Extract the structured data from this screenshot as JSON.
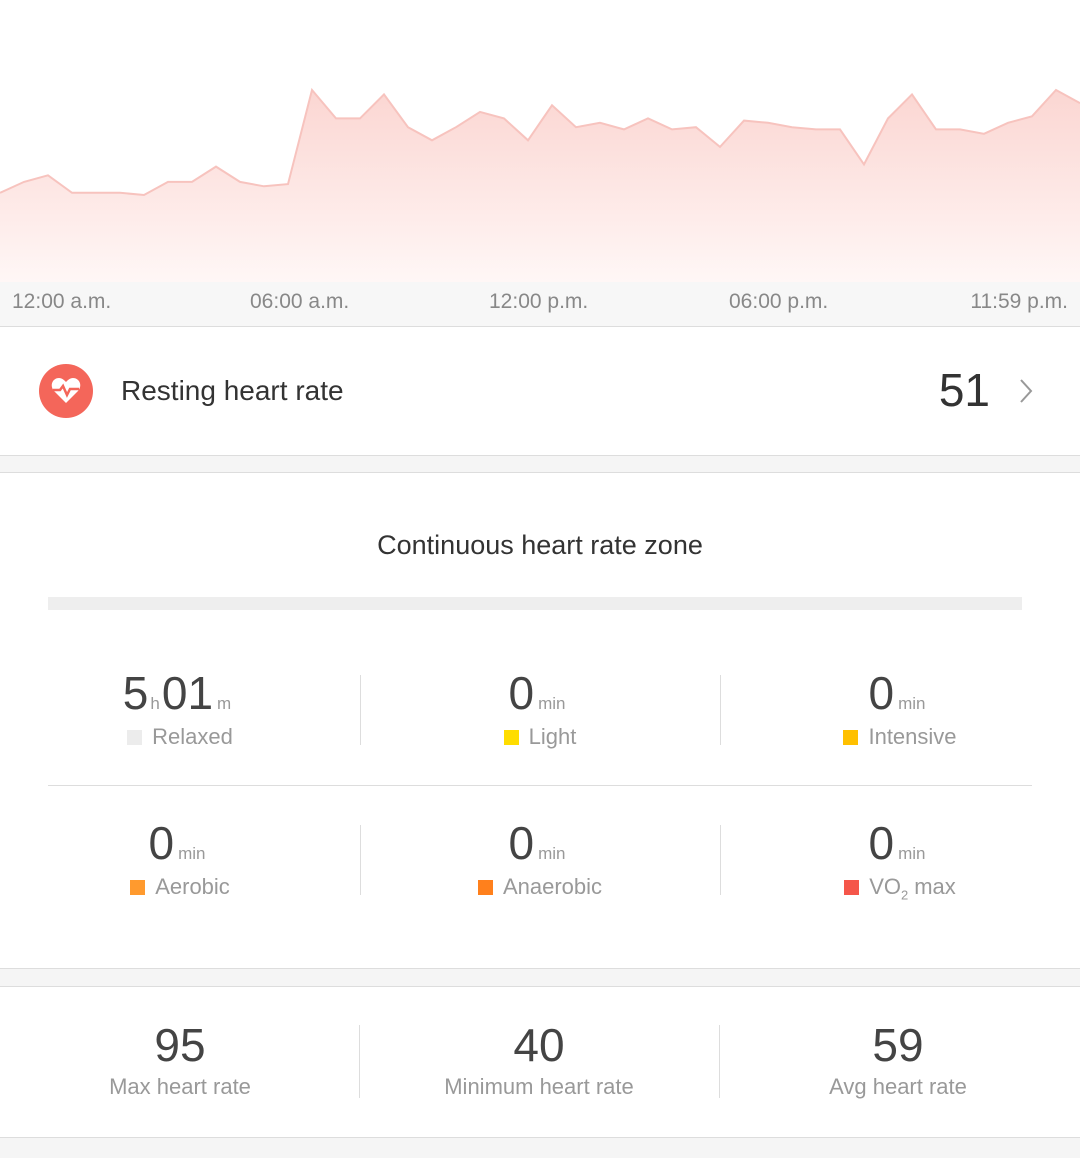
{
  "heart_rate_chart": {
    "values": [
      45,
      50,
      53,
      45,
      45,
      45,
      44,
      50,
      50,
      57,
      50,
      48,
      49,
      92,
      79,
      79,
      90,
      75,
      69,
      75,
      82,
      79,
      69,
      85,
      75,
      77,
      74,
      79,
      74,
      75,
      66,
      78,
      77,
      75,
      74,
      74,
      58,
      79,
      90,
      74,
      74,
      72,
      77,
      80,
      92,
      86
    ],
    "axis_labels": [
      "12:00 a.m.",
      "06:00 a.m.",
      "12:00 p.m.",
      "06:00 p.m.",
      "11:59 p.m."
    ]
  },
  "resting": {
    "label": "Resting heart rate",
    "value": 51
  },
  "zones": {
    "title": "Continuous heart rate zone",
    "relaxed": {
      "hours": 5,
      "hours_unit": "h",
      "minutes": "01",
      "minutes_unit": "m",
      "label": "Relaxed",
      "color": "#ececec"
    },
    "items": [
      {
        "value": 0,
        "unit": "min",
        "label": "Light",
        "color": "#ffdd00"
      },
      {
        "value": 0,
        "unit": "min",
        "label": "Intensive",
        "color": "#ffc000"
      },
      {
        "value": 0,
        "unit": "min",
        "label": "Aerobic",
        "color": "#ff9a2e"
      },
      {
        "value": 0,
        "unit": "min",
        "label": "Anaerobic",
        "color": "#ff801c"
      },
      {
        "value": 0,
        "unit": "min",
        "label": "VO",
        "sub": "2",
        "label_rest": "max",
        "color": "#f5564a"
      }
    ]
  },
  "stats": [
    {
      "value": 95,
      "label": "Max heart rate"
    },
    {
      "value": 40,
      "label": "Minimum heart rate"
    },
    {
      "value": 59,
      "label": "Avg heart rate"
    }
  ]
}
